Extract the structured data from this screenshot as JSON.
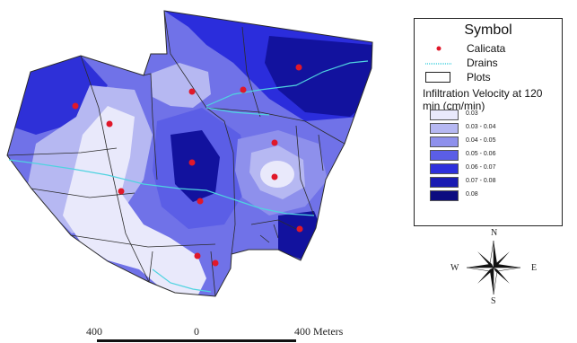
{
  "legend": {
    "title": "Symbol",
    "calicata_label": "Calicata",
    "drains_label": "Drains",
    "plots_label": "Plots",
    "infiltration_title": "Infiltration Velocity at 120 min (cm/min)",
    "ramp": [
      {
        "label": "0.03",
        "color": "#e9e9fb"
      },
      {
        "label": "0.03 - 0.04",
        "color": "#b6b8f2"
      },
      {
        "label": "0.04 - 0.05",
        "color": "#8e90ec"
      },
      {
        "label": "0.05 - 0.06",
        "color": "#5b5ee6"
      },
      {
        "label": "0.06 - 0.07",
        "color": "#2e30dc"
      },
      {
        "label": "0.07 - 0.08",
        "color": "#1a1bb2"
      },
      {
        "label": "0.08",
        "color": "#0c0c80"
      }
    ]
  },
  "scale_bar": {
    "left_label": "400",
    "center_label": "0",
    "right_label": "400 Meters"
  },
  "compass": {
    "n": "N",
    "s": "S",
    "e": "E",
    "w": "W"
  },
  "colors": {
    "calicata": "#e0182a",
    "drain": "#4fd3e0",
    "plot_boundary": "#2b2b2b"
  },
  "map": {
    "calicata_count": 14
  }
}
